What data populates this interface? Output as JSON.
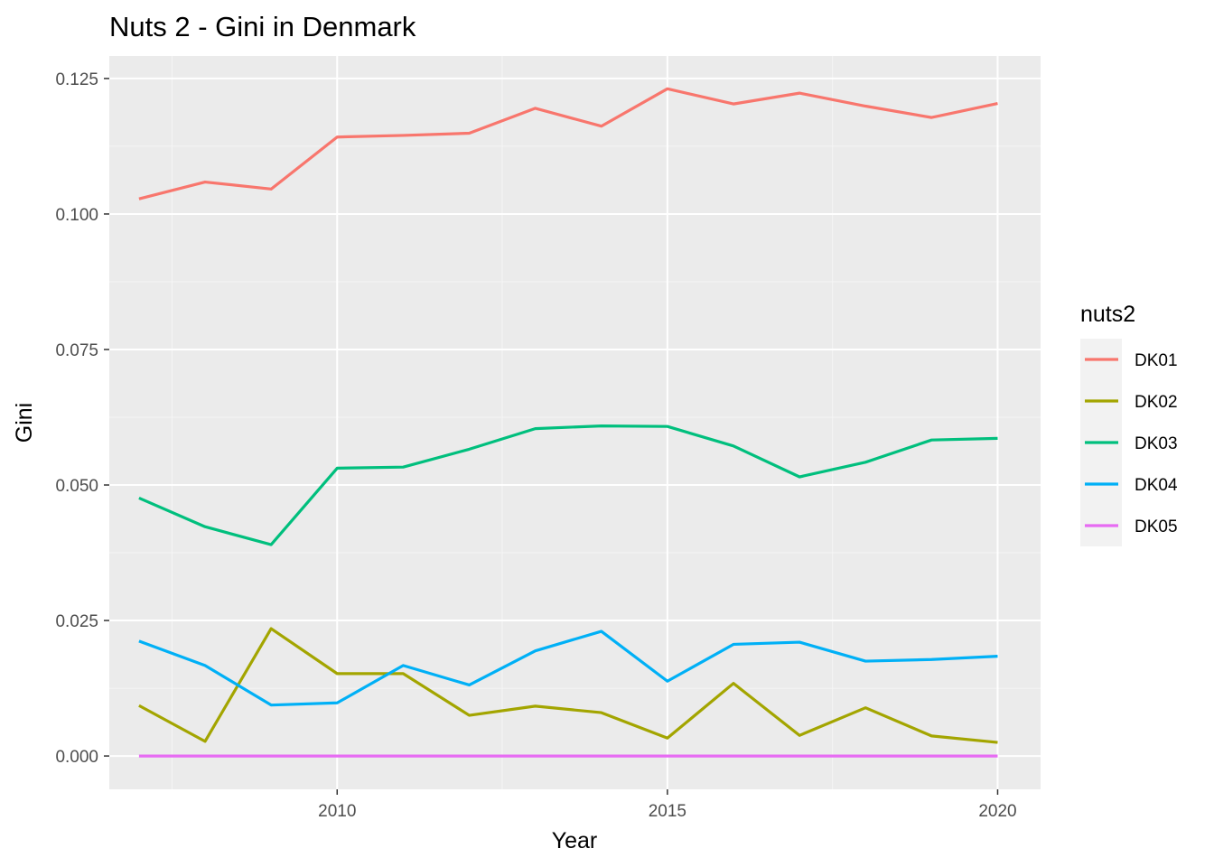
{
  "chart_data": {
    "type": "line",
    "title": "Nuts 2 - Gini in Denmark",
    "xlabel": "Year",
    "ylabel": "Gini",
    "xlim": [
      2006.55,
      2020.65
    ],
    "ylim": [
      -0.00615,
      0.12915
    ],
    "x_ticks": [
      2010,
      2015,
      2020
    ],
    "x_minor_ticks": [
      2007.5,
      2012.5,
      2017.5
    ],
    "x_tick_labels": [
      "2010",
      "2015",
      "2020"
    ],
    "y_ticks": [
      0,
      0.025,
      0.05,
      0.075,
      0.1,
      0.125
    ],
    "y_minor_ticks": [
      0.0125,
      0.0375,
      0.0625,
      0.0875,
      0.1125
    ],
    "y_tick_labels": [
      "0.000",
      "0.025",
      "0.050",
      "0.075",
      "0.100",
      "0.125"
    ],
    "grid": true,
    "legend": {
      "title": "nuts2",
      "position": "right"
    },
    "x": [
      2007,
      2008,
      2009,
      2010,
      2011,
      2012,
      2013,
      2014,
      2015,
      2016,
      2017,
      2018,
      2019,
      2020
    ],
    "series": [
      {
        "name": "DK01",
        "color": "#F8766D",
        "values": [
          0.1028,
          0.1059,
          0.1046,
          0.1142,
          0.1145,
          0.1149,
          0.1195,
          0.1162,
          0.1231,
          0.1203,
          0.1223,
          0.1199,
          0.1178,
          0.1204
        ]
      },
      {
        "name": "DK02",
        "color": "#A3A500",
        "values": [
          0.0093,
          0.0027,
          0.0235,
          0.0152,
          0.0152,
          0.0075,
          0.0092,
          0.008,
          0.0033,
          0.0134,
          0.0038,
          0.0089,
          0.0037,
          0.0025
        ]
      },
      {
        "name": "DK03",
        "color": "#00BF7D",
        "values": [
          0.0476,
          0.0423,
          0.039,
          0.0531,
          0.0533,
          0.0566,
          0.0604,
          0.0609,
          0.0608,
          0.0572,
          0.0515,
          0.0542,
          0.0583,
          0.0586
        ]
      },
      {
        "name": "DK04",
        "color": "#00B0F6",
        "values": [
          0.0212,
          0.0167,
          0.0094,
          0.0098,
          0.0167,
          0.0131,
          0.0194,
          0.023,
          0.0138,
          0.0206,
          0.021,
          0.0175,
          0.0178,
          0.0184
        ]
      },
      {
        "name": "DK05",
        "color": "#E76BF3",
        "values": [
          0.0,
          0.0,
          0.0,
          0.0,
          0.0,
          0.0,
          0.0,
          0.0,
          0.0,
          0.0,
          0.0,
          0.0,
          0.0,
          0.0
        ]
      }
    ]
  }
}
